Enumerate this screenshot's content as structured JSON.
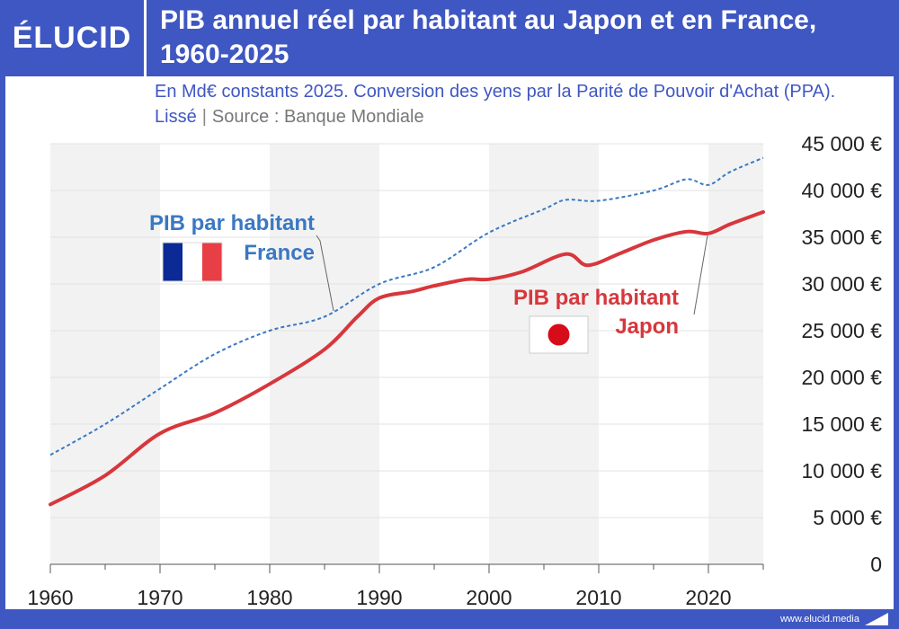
{
  "header": {
    "logo": "ÉLUCID",
    "title": "PIB annuel réel par habitant au Japon et en France, 1960-2025"
  },
  "subtitle": {
    "text": "En Md€ constants 2025. Conversion des yens par la Parité de Pouvoir d'Achat (PPA). Lissé",
    "separator": "|",
    "source": "Source : Banque Mondiale"
  },
  "footer": {
    "url": "www.elucid.media"
  },
  "colors": {
    "brand": "#3f57c2",
    "france": "#3a78c2",
    "japan": "#d7373c",
    "shade": "#f2f2f2"
  },
  "chart_data": {
    "type": "line",
    "title": "PIB annuel réel par habitant au Japon et en France, 1960-2025",
    "xlabel": "",
    "ylabel": "",
    "xlim": [
      1960,
      2025
    ],
    "ylim": [
      0,
      45000
    ],
    "x_ticks": [
      1960,
      1970,
      1980,
      1990,
      2000,
      2010,
      2020
    ],
    "x_tick_labels": [
      "1960",
      "1970",
      "1980",
      "1990",
      "2000",
      "2010",
      "2020"
    ],
    "y_ticks": [
      0,
      5000,
      10000,
      15000,
      20000,
      25000,
      30000,
      35000,
      40000,
      45000
    ],
    "y_tick_labels": [
      "0",
      "5 000 €",
      "10 000 €",
      "15 000 €",
      "20 000 €",
      "25 000 €",
      "30 000 €",
      "35 000 €",
      "40 000 €",
      "45 000 €"
    ],
    "shaded_decades": [
      [
        1960,
        1970
      ],
      [
        1980,
        1990
      ],
      [
        2000,
        2010
      ],
      [
        2020,
        2025
      ]
    ],
    "grid": true,
    "series": [
      {
        "name": "France",
        "label_line1": "PIB par habitant",
        "label_line2": "France",
        "style": "dashed",
        "color": "#3a78c2",
        "x": [
          1960,
          1965,
          1970,
          1975,
          1980,
          1985,
          1990,
          1995,
          2000,
          2005,
          2007,
          2010,
          2015,
          2018,
          2020,
          2022,
          2025
        ],
        "y": [
          11700,
          15000,
          18800,
          22500,
          25000,
          26500,
          30000,
          31800,
          35500,
          38000,
          39000,
          38900,
          40000,
          41200,
          40600,
          42000,
          43500
        ]
      },
      {
        "name": "Japon",
        "label_line1": "PIB par habitant",
        "label_line2": "Japon",
        "style": "solid",
        "color": "#d7373c",
        "x": [
          1960,
          1965,
          1970,
          1975,
          1980,
          1985,
          1988,
          1990,
          1993,
          1995,
          1998,
          2000,
          2003,
          2007,
          2009,
          2012,
          2015,
          2018,
          2020,
          2022,
          2025
        ],
        "y": [
          6400,
          9500,
          14000,
          16200,
          19300,
          23000,
          26500,
          28500,
          29200,
          29800,
          30500,
          30500,
          31300,
          33200,
          32000,
          33300,
          34700,
          35600,
          35400,
          36400,
          37700
        ]
      }
    ]
  }
}
